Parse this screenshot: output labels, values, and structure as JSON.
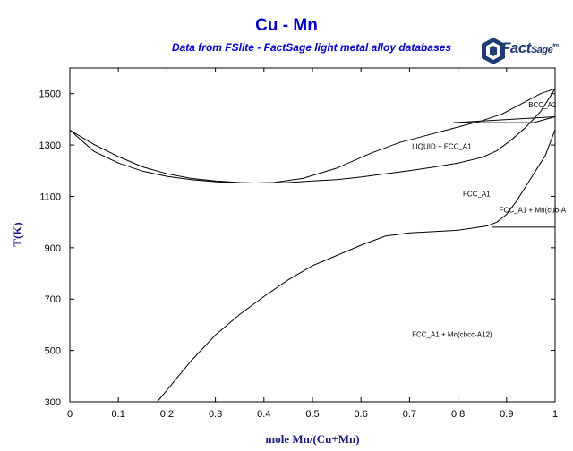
{
  "header": {
    "title": "Cu - Mn",
    "subtitle": "Data from FSlite - FactSage light metal alloy databases",
    "logo_main": "Fact",
    "logo_sub": "Sage",
    "logo_tm": "tm"
  },
  "colors": {
    "title": "#0000cc",
    "axis_title": "#1a1a80",
    "lines": "#000000",
    "logo": "#1f3b73"
  },
  "chart_data": {
    "type": "line",
    "xlabel": "mole Mn/(Cu+Mn)",
    "ylabel": "T(K)",
    "xlim": [
      0,
      1
    ],
    "ylim": [
      300,
      1600
    ],
    "x_ticks": [
      "0",
      "0.1",
      "0.2",
      "0.3",
      "0.4",
      "0.5",
      "0.6",
      "0.7",
      "0.8",
      "0.9",
      "1"
    ],
    "y_ticks": [
      "300",
      "500",
      "700",
      "900",
      "1100",
      "1300",
      "1500"
    ],
    "grid": false,
    "series": [
      {
        "points": [
          [
            0,
            1358
          ],
          [
            0.05,
            1302
          ],
          [
            0.1,
            1255
          ],
          [
            0.15,
            1215
          ],
          [
            0.2,
            1188
          ],
          [
            0.25,
            1170
          ],
          [
            0.3,
            1160
          ],
          [
            0.35,
            1154
          ],
          [
            0.38,
            1152
          ],
          [
            0.42,
            1154
          ],
          [
            0.48,
            1170
          ],
          [
            0.55,
            1210
          ],
          [
            0.62,
            1268
          ],
          [
            0.68,
            1310
          ],
          [
            0.75,
            1345
          ],
          [
            0.8,
            1370
          ],
          [
            0.85,
            1395
          ],
          [
            0.89,
            1420
          ],
          [
            0.93,
            1460
          ],
          [
            0.97,
            1500
          ],
          [
            1.0,
            1519
          ]
        ]
      },
      {
        "points": [
          [
            0,
            1358
          ],
          [
            0.05,
            1275
          ],
          [
            0.1,
            1230
          ],
          [
            0.15,
            1198
          ],
          [
            0.2,
            1178
          ],
          [
            0.25,
            1165
          ],
          [
            0.3,
            1157
          ],
          [
            0.35,
            1152
          ],
          [
            0.4,
            1152
          ],
          [
            0.45,
            1154
          ],
          [
            0.5,
            1160
          ],
          [
            0.55,
            1165
          ],
          [
            0.6,
            1175
          ],
          [
            0.65,
            1188
          ],
          [
            0.7,
            1200
          ],
          [
            0.75,
            1214
          ],
          [
            0.8,
            1230
          ],
          [
            0.85,
            1252
          ],
          [
            0.88,
            1278
          ],
          [
            0.91,
            1320
          ],
          [
            0.94,
            1370
          ],
          [
            0.97,
            1430
          ],
          [
            1.0,
            1519
          ]
        ]
      },
      {
        "points": [
          [
            1.0,
            1360
          ],
          [
            0.99,
            1310
          ],
          [
            0.98,
            1260
          ],
          [
            0.96,
            1200
          ],
          [
            0.94,
            1140
          ],
          [
            0.92,
            1080
          ],
          [
            0.9,
            1030
          ],
          [
            0.88,
            1000
          ],
          [
            0.86,
            985
          ],
          [
            0.8,
            968
          ],
          [
            0.7,
            958
          ],
          [
            0.65,
            945
          ],
          [
            0.6,
            910
          ],
          [
            0.55,
            870
          ],
          [
            0.5,
            830
          ],
          [
            0.45,
            775
          ],
          [
            0.4,
            710
          ],
          [
            0.35,
            640
          ],
          [
            0.3,
            560
          ],
          [
            0.25,
            460
          ],
          [
            0.2,
            345
          ],
          [
            0.18,
            300
          ]
        ]
      },
      {
        "points": [
          [
            0.79,
            1387
          ],
          [
            1.0,
            1410
          ]
        ]
      },
      {
        "points": [
          [
            0.79,
            1387
          ],
          [
            0.955,
            1387
          ],
          [
            1.0,
            1410
          ]
        ]
      },
      {
        "points": [
          [
            0.87,
            980
          ],
          [
            1.0,
            980
          ]
        ]
      },
      {
        "points": [
          [
            1.0,
            1360
          ],
          [
            1.0,
            1519
          ]
        ]
      }
    ],
    "annotations": [
      {
        "text": "BCC_A2",
        "x": 0.945,
        "y": 1447
      },
      {
        "text": "LIQUID + FCC_A1",
        "x": 0.705,
        "y": 1285
      },
      {
        "text": "FCC_A1",
        "x": 0.81,
        "y": 1100
      },
      {
        "text": "FCC_A1 + Mn(cub-A",
        "x": 0.885,
        "y": 1038
      },
      {
        "text": "FCC_A1 + Mn(cbcc-A12)",
        "x": 0.705,
        "y": 552
      }
    ]
  }
}
